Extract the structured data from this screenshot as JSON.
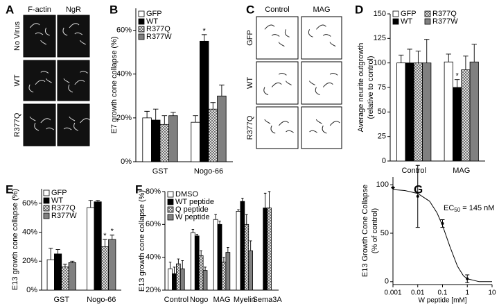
{
  "panels": {
    "A": {
      "label": "A",
      "columns": [
        "F-actin",
        "NgR"
      ],
      "rows": [
        "No Virus",
        "WT",
        "R377Q"
      ]
    },
    "C": {
      "label": "C",
      "columns": [
        "Control",
        "MAG"
      ],
      "rows": [
        "GFP",
        "WT",
        "R377Q"
      ]
    }
  },
  "chart_data": [
    {
      "type": "bar",
      "label": "B",
      "ylabel": [
        "E7 growth cone collapse (%)"
      ],
      "categories": [
        "GST",
        "Nogo-66"
      ],
      "series": [
        {
          "name": "GFP",
          "color": "#ffffff",
          "values": [
            20,
            18
          ],
          "errors": [
            3,
            3
          ],
          "significance": [
            null,
            null
          ]
        },
        {
          "name": "WT",
          "color": "#000000",
          "values": [
            19,
            55
          ],
          "errors": [
            5,
            3
          ],
          "significance": [
            null,
            "*"
          ]
        },
        {
          "name": "R377Q",
          "color": "#ffffff",
          "pattern": "crosshatch",
          "values": [
            17,
            24
          ],
          "errors": [
            4,
            3
          ],
          "significance": [
            null,
            null
          ]
        },
        {
          "name": "R377W",
          "color": "#808080",
          "values": [
            21,
            30
          ],
          "errors": [
            1.5,
            5
          ],
          "significance": [
            null,
            null
          ]
        }
      ],
      "ylim": [
        0,
        70
      ],
      "yticks": [
        {
          "value": 0,
          "label": "0%"
        },
        {
          "value": 20,
          "label": "20%"
        },
        {
          "value": 40,
          "label": "40%"
        },
        {
          "value": 60,
          "label": "60%"
        }
      ],
      "legend": "top-left",
      "legend_columns": 1
    },
    {
      "type": "bar",
      "label": "D",
      "ylabel": [
        "Average neurite outgrowth",
        "(relative to control)"
      ],
      "categories": [
        "Control",
        "MAG"
      ],
      "series": [
        {
          "name": "GFP",
          "color": "#ffffff",
          "values": [
            100,
            101
          ],
          "errors": [
            8,
            8
          ],
          "significance": [
            null,
            null
          ]
        },
        {
          "name": "WT",
          "color": "#000000",
          "values": [
            100,
            75
          ],
          "errors": [
            14,
            8
          ],
          "significance": [
            null,
            "*"
          ]
        },
        {
          "name": "R377Q",
          "color": "#ffffff",
          "pattern": "crosshatch",
          "values": [
            100,
            93
          ],
          "errors": [
            12,
            14
          ],
          "significance": [
            null,
            null
          ]
        },
        {
          "name": "R377W",
          "color": "#808080",
          "values": [
            100,
            101
          ],
          "errors": [
            24,
            18
          ],
          "significance": [
            null,
            null
          ]
        }
      ],
      "ylim": [
        0,
        150
      ],
      "yticks": [
        0,
        25,
        50,
        75,
        100,
        125,
        150
      ],
      "legend": "top-left",
      "legend_columns": 2
    },
    {
      "type": "bar",
      "label": "E",
      "ylabel": [
        "E13 growth cone collapse (%)"
      ],
      "categories": [
        "GST",
        "Nogo-66"
      ],
      "series": [
        {
          "name": "GFP",
          "color": "#ffffff",
          "values": [
            21,
            57
          ],
          "errors": [
            8,
            5
          ],
          "significance": [
            null,
            null
          ]
        },
        {
          "name": "WT",
          "color": "#000000",
          "values": [
            25,
            61
          ],
          "errors": [
            3,
            1
          ],
          "significance": [
            null,
            null
          ]
        },
        {
          "name": "R377Q",
          "color": "#ffffff",
          "pattern": "crosshatch",
          "values": [
            16,
            30
          ],
          "errors": [
            2,
            5
          ],
          "significance": [
            null,
            "*"
          ]
        },
        {
          "name": "R377W",
          "color": "#808080",
          "values": [
            19,
            35
          ],
          "errors": [
            1,
            3
          ],
          "significance": [
            null,
            "*"
          ]
        }
      ],
      "ylim": [
        0,
        70
      ],
      "yticks": [
        {
          "value": 0,
          "label": "0%"
        },
        {
          "value": 20,
          "label": "20%"
        },
        {
          "value": 40,
          "label": "40%"
        },
        {
          "value": 60,
          "label": "60%"
        }
      ],
      "legend": "top-left",
      "legend_columns": 1
    },
    {
      "type": "bar",
      "label": "F",
      "ylabel": [
        "E13 growth cone collapse (%)"
      ],
      "categories": [
        "Control",
        "Nogo",
        "MAG",
        "Myelin",
        "Sema3A"
      ],
      "series": [
        {
          "name": "DMSO",
          "color": "#ffffff",
          "values": [
            33,
            55,
            63,
            68,
            null
          ],
          "errors": [
            4,
            2,
            3,
            1,
            null
          ]
        },
        {
          "name": "WT peptide",
          "color": "#000000",
          "values": [
            30,
            53,
            60,
            74,
            70
          ],
          "errors": [
            4,
            1,
            2,
            2,
            9
          ]
        },
        {
          "name": "Q peptide",
          "color": "#ffffff",
          "pattern": "crosshatch",
          "values": [
            36,
            41,
            37,
            60,
            70
          ],
          "errors": [
            3,
            3,
            3,
            6,
            10
          ]
        },
        {
          "name": "W peptide",
          "color": "#808080",
          "values": [
            33,
            32,
            43,
            44,
            null
          ],
          "errors": [
            5,
            2,
            3,
            6,
            null
          ]
        }
      ],
      "ylim": [
        20,
        80
      ],
      "yticks": [
        {
          "value": 20,
          "label": "20%"
        },
        {
          "value": 40,
          "label": "40%"
        },
        {
          "value": 60,
          "label": "60%"
        },
        {
          "value": 80,
          "label": "80%"
        }
      ],
      "legend": "top-left",
      "legend_columns": 1
    },
    {
      "type": "scatter",
      "label": "G",
      "ylabel": [
        "E13 Growth Cone Collapse",
        "(% of control)"
      ],
      "xlabel": "W peptide [mM]",
      "x": [
        0.001,
        0.01,
        0.1,
        1
      ],
      "values": [
        97,
        88,
        60,
        3
      ],
      "errors": [
        0,
        32,
        4,
        4
      ],
      "color": "#000000",
      "curve": {
        "x": [
          0.001,
          0.003,
          0.01,
          0.03,
          0.06,
          0.1,
          0.2,
          0.4,
          0.7,
          1,
          3,
          10
        ],
        "y": [
          95,
          94,
          91,
          83,
          71,
          58,
          36,
          16,
          6,
          3,
          0,
          0
        ]
      },
      "annotation": {
        "text": "EC",
        "sub": "50",
        "rest": " = 145 nM"
      },
      "xscale": "log",
      "xlim": [
        0.001,
        10
      ],
      "xticks": [
        0.001,
        0.01,
        0.1,
        1,
        10
      ],
      "ylim": [
        -3,
        108
      ],
      "yticks": [
        0,
        50,
        100
      ]
    }
  ]
}
